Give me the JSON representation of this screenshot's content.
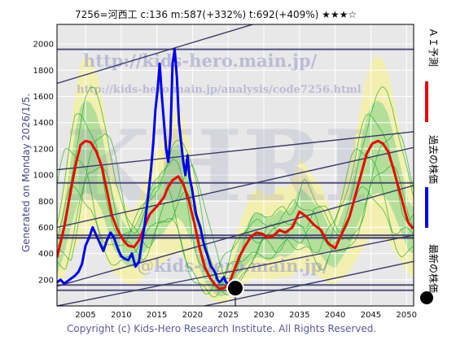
{
  "header": {
    "title": "7256=河西工 c:136 m:587(+332%) t:692(+409%) ★★★☆"
  },
  "side_text": "Generated on Monday 2026/1/5.",
  "copyright": "Copyright (c) Kids-Hero Research Institute. All Rights Reserved.",
  "watermarks": {
    "url_top": "http://kids-hero.main.jp/",
    "url_analysis": "http://kids-hero.main.jp/analysis/code7256.html",
    "big_letters": "KHRI",
    "url_bottom": "@kids-hero.main.jp/"
  },
  "legend": [
    {
      "label": "ＡＩ予測",
      "color": "#ee0000",
      "shape": "line"
    },
    {
      "label": "過去の株価",
      "color": "#0000ee",
      "shape": "line"
    },
    {
      "label": "最新の株価",
      "color": "#000000",
      "shape": "dot"
    }
  ],
  "colors": {
    "plot_bg": "#e8e8e8",
    "grid": "#ffffff",
    "ai": "#ee0000",
    "past": "#0000ee",
    "latest": "#000000",
    "band_yellow": "#f4f0a8",
    "band_green": "#a8dc98",
    "green_line": "#22aa22",
    "trend": "#3a3a6a"
  },
  "chart_data": {
    "type": "line",
    "title": "7256=河西工 c:136 m:587(+332%) t:692(+409%) ★★★☆",
    "xlabel": "",
    "ylabel": "",
    "xlim": [
      2001,
      2051
    ],
    "ylim": [
      0,
      2150
    ],
    "xticks": [
      2005,
      2010,
      2015,
      2020,
      2025,
      2030,
      2035,
      2040,
      2045,
      2050
    ],
    "yticks": [
      200,
      400,
      600,
      800,
      1000,
      1200,
      1400,
      1600,
      1800,
      2000
    ],
    "grid": true,
    "legend_position": "right",
    "latest": {
      "x": 2026.0,
      "y": 136
    },
    "series": [
      {
        "name": "ＡＩ予測",
        "color": "#ee0000",
        "x": [
          2001,
          2002,
          2003,
          2003.7,
          2004.3,
          2005,
          2005.7,
          2006.5,
          2007.3,
          2008,
          2008.7,
          2009.5,
          2010.3,
          2011,
          2011.8,
          2012.5,
          2013.3,
          2014,
          2015,
          2016,
          2016.5,
          2017.2,
          2018,
          2018.7,
          2019.5,
          2020.3,
          2021,
          2021.7,
          2022.5,
          2023.2,
          2023.8,
          2024.5,
          2025.2,
          2025.9,
          2026.6,
          2027.4,
          2028.2,
          2029,
          2029.8,
          2030.6,
          2031.4,
          2032.2,
          2033,
          2034,
          2035,
          2036,
          2037,
          2038,
          2039,
          2040,
          2041,
          2042,
          2042.8,
          2043.6,
          2044.4,
          2045.2,
          2046,
          2046.7,
          2047.4,
          2048.1,
          2048.8,
          2049.5,
          2050.2,
          2050.9
        ],
        "y": [
          370,
          600,
          900,
          1100,
          1230,
          1260,
          1250,
          1180,
          1060,
          880,
          690,
          580,
          500,
          460,
          450,
          500,
          610,
          700,
          760,
          830,
          900,
          960,
          990,
          930,
          800,
          620,
          440,
          300,
          210,
          160,
          130,
          140,
          180,
          280,
          380,
          460,
          530,
          560,
          550,
          520,
          540,
          580,
          560,
          600,
          720,
          680,
          620,
          580,
          480,
          440,
          560,
          680,
          840,
          1000,
          1160,
          1240,
          1260,
          1240,
          1180,
          1060,
          920,
          780,
          640,
          590
        ]
      },
      {
        "name": "過去の株価",
        "color": "#0000ee",
        "x": [
          2001,
          2001.5,
          2002,
          2002.5,
          2003,
          2003.5,
          2004,
          2004.5,
          2005,
          2005.5,
          2006,
          2006.5,
          2007,
          2007.5,
          2008,
          2008.5,
          2009,
          2009.5,
          2010,
          2010.5,
          2011,
          2011.5,
          2012,
          2012.5,
          2013,
          2013.3,
          2013.6,
          2013.9,
          2014.2,
          2014.5,
          2014.8,
          2015.1,
          2015.4,
          2015.7,
          2016,
          2016.3,
          2016.6,
          2016.9,
          2017.2,
          2017.5,
          2017.8,
          2018.1,
          2018.4,
          2018.7,
          2019,
          2019.3,
          2019.6,
          2019.9,
          2020.2,
          2020.5,
          2020.8,
          2021.1,
          2021.4,
          2021.7,
          2022,
          2022.3,
          2022.6,
          2022.9,
          2023.2,
          2023.5,
          2023.8,
          2024.1,
          2024.4,
          2024.7,
          2025,
          2025.3,
          2025.6,
          2025.9,
          2026.0
        ],
        "y": [
          180,
          200,
          170,
          190,
          210,
          230,
          260,
          320,
          460,
          520,
          600,
          540,
          480,
          420,
          500,
          560,
          520,
          440,
          380,
          360,
          350,
          400,
          300,
          340,
          520,
          620,
          760,
          900,
          1050,
          1250,
          1500,
          1650,
          1850,
          1600,
          1400,
          1200,
          1100,
          1300,
          1850,
          1960,
          1750,
          1400,
          1250,
          1100,
          1000,
          1150,
          980,
          900,
          800,
          700,
          650,
          600,
          520,
          450,
          400,
          350,
          300,
          280,
          250,
          200,
          180,
          200,
          220,
          180,
          170,
          160,
          150,
          140,
          136
        ]
      }
    ],
    "trend_lines": [
      {
        "x": [
          2001,
          2051
        ],
        "y": [
          1700,
          2520
        ]
      },
      {
        "x": [
          2001,
          2051
        ],
        "y": [
          1040,
          1330
        ]
      },
      {
        "x": [
          2001,
          2051
        ],
        "y": [
          600,
          1210
        ]
      },
      {
        "x": [
          2001,
          2051
        ],
        "y": [
          150,
          920
        ]
      },
      {
        "x": [
          2001,
          2051
        ],
        "y": [
          0,
          540
        ]
      },
      {
        "x": [
          2001,
          2051
        ],
        "y": [
          -240,
          340
        ]
      }
    ],
    "horizontal_levels": [
      1960,
      940,
      540,
      520,
      520,
      160,
      120
    ]
  }
}
